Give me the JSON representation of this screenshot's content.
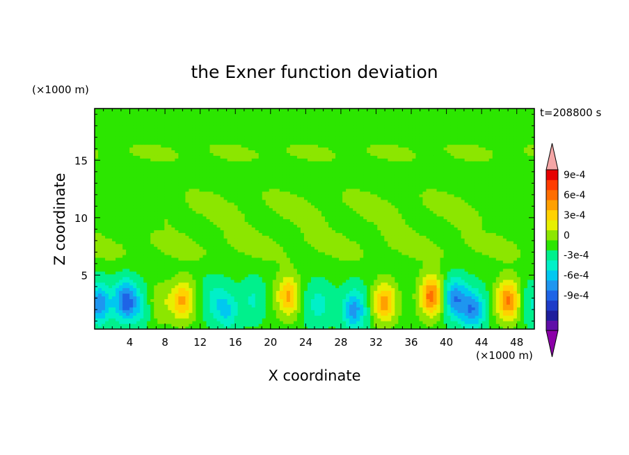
{
  "chart_data": {
    "type": "heatmap",
    "title": "the Exner function deviation",
    "xlabel": "X coordinate",
    "ylabel": "Z coordinate",
    "x_unit": "(×1000 m)",
    "y_unit": "(×1000 m)",
    "time_label": "t=208800 s",
    "xlim": [
      0,
      50
    ],
    "ylim": [
      0.3,
      19.5
    ],
    "x_ticks": [
      "4",
      "8",
      "12",
      "16",
      "20",
      "24",
      "28",
      "32",
      "36",
      "40",
      "44",
      "48"
    ],
    "y_ticks": [
      "5",
      "10",
      "15"
    ],
    "colorbar": {
      "tick_labels": [
        "9e-4",
        "6e-4",
        "3e-4",
        "0",
        "-3e-4",
        "-6e-4",
        "-9e-4"
      ],
      "levels": [
        -0.0012,
        -0.0011,
        -0.00095,
        -0.0008,
        -0.00065,
        -0.0005,
        -0.00035,
        -0.0002,
        -5e-05,
        5e-05,
        0.0002,
        0.00035,
        0.0005,
        0.00065,
        0.0008,
        0.00095,
        0.0011
      ],
      "colors": [
        "#8b00a8",
        "#5f0ea8",
        "#1e1e9c",
        "#1e3cc8",
        "#1e64e6",
        "#1e96f0",
        "#00c8f0",
        "#00f0c8",
        "#00f08c",
        "#2ce600",
        "#8ce600",
        "#e6f000",
        "#ffd200",
        "#ffa000",
        "#ff6e00",
        "#ff3c00",
        "#e60000",
        "#f4a6a6"
      ]
    },
    "base_field": {
      "upper_level_positive_bands": [
        {
          "x_range": [
            0,
            50
          ],
          "z_center": 15.7,
          "z_halfwidth": 1.0,
          "value": 0.0001
        },
        {
          "x_range": [
            8,
            44
          ],
          "z_center": 11.0,
          "z_halfwidth": 2.0,
          "value": 0.0001
        },
        {
          "x_range": [
            0,
            50
          ],
          "z_center": 7.5,
          "z_halfwidth": 1.6,
          "value": 0.0001
        }
      ]
    },
    "anomalies": [
      {
        "x": 0.5,
        "z": 2.5,
        "value": -0.0006
      },
      {
        "x": 3.5,
        "z": 2.8,
        "value": -0.0007
      },
      {
        "x": 5.0,
        "z": 2.2,
        "value": -0.0002
      },
      {
        "x": 7.5,
        "z": 2.6,
        "value": 0.0002
      },
      {
        "x": 10.0,
        "z": 2.8,
        "value": 0.00055
      },
      {
        "x": 13.5,
        "z": 3.0,
        "value": -0.0002
      },
      {
        "x": 15.0,
        "z": 2.0,
        "value": -0.00035
      },
      {
        "x": 18.0,
        "z": 2.8,
        "value": -0.0002
      },
      {
        "x": 22.0,
        "z": 3.2,
        "value": 0.00055
      },
      {
        "x": 24.5,
        "z": 2.5,
        "value": -0.0001
      },
      {
        "x": 25.8,
        "z": 2.5,
        "value": -0.0002
      },
      {
        "x": 29.5,
        "z": 2.0,
        "value": -0.00055
      },
      {
        "x": 33.0,
        "z": 2.6,
        "value": 0.0006
      },
      {
        "x": 38.3,
        "z": 3.2,
        "value": 0.00075
      },
      {
        "x": 41.0,
        "z": 3.0,
        "value": -0.0006
      },
      {
        "x": 43.0,
        "z": 2.0,
        "value": -0.0006
      },
      {
        "x": 47.0,
        "z": 2.8,
        "value": 0.0007
      },
      {
        "x": 49.8,
        "z": 2.5,
        "value": -0.0002
      }
    ]
  }
}
